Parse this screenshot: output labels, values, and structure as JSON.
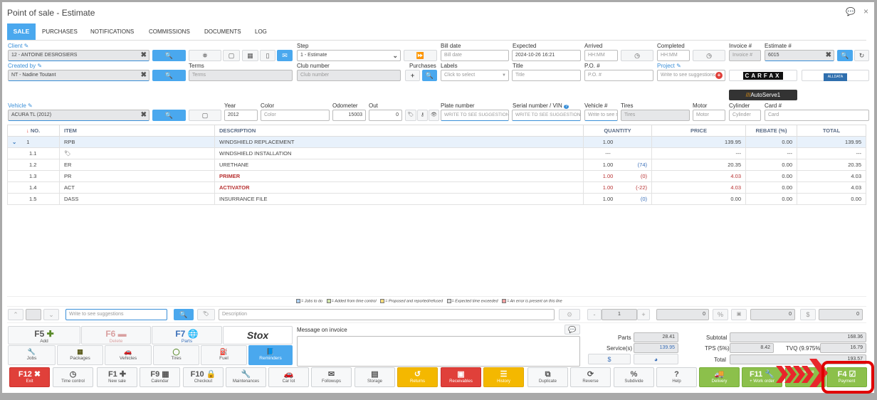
{
  "title": "Point of sale - Estimate",
  "tabs": [
    "SALE",
    "PURCHASES",
    "NOTIFICATIONS",
    "COMMISSIONS",
    "DOCUMENTS",
    "LOG"
  ],
  "colors": {
    "accent": "#4aa8ee",
    "danger": "#e0403a",
    "warning": "#f4b800",
    "success": "#8cc04b",
    "highlight": "#e00000"
  },
  "form": {
    "client_label": "Client",
    "client_value": "12 - ANTOINE DESROSIERS",
    "step_label": "Step",
    "step_value": "1 - Estimate",
    "bill_date_label": "Bill date",
    "bill_date_ph": "Bill date",
    "expected_label": "Expected",
    "expected_value": "2024-10-26 16:21",
    "arrived_label": "Arrived",
    "arrived_ph": "HH:MM",
    "completed_label": "Completed",
    "completed_ph": "HH:MM",
    "invoice_label": "Invoice #",
    "invoice_ph": "Invoice #",
    "estimate_label": "Estimate #",
    "estimate_value": "6015",
    "created_by_label": "Created by",
    "created_by_value": "NT - Nadine Toutant",
    "terms_label": "Terms",
    "terms_ph": "Terms",
    "club_label": "Club number",
    "club_ph": "Club number",
    "purchases_label": "Purchases",
    "labels_label": "Labels",
    "labels_ph": "Click to select",
    "title_label": "Title",
    "title_ph": "Title",
    "po_label": "P.O. #",
    "po_ph": "P.O. #",
    "project_label": "Project",
    "project_ph": "Write to see suggestions",
    "carfax": "CARFAX",
    "alldata": "ALLDATA",
    "autoserve": "AutoServe1",
    "vehicle_label": "Vehicle",
    "vehicle_value": "ACURA TL (2012)",
    "year_label": "Year",
    "year_value": "2012",
    "color_label": "Color",
    "color_ph": "Color",
    "odometer_label": "Odometer",
    "odometer_value": "15003",
    "out_label": "Out",
    "out_value": "0",
    "plate_label": "Plate number",
    "plate_ph": "WRITE TO SEE SUGGESTIONS",
    "vin_label": "Serial number / VIN",
    "vin_ph": "WRITE TO SEE SUGGESTIONS",
    "vehnum_label": "Vehicle #",
    "vehnum_ph": "Write to see suggestions",
    "tires_label": "Tires",
    "tires_ph": "Tires",
    "motor_label": "Motor",
    "motor_ph": "Motor",
    "cylinder_label": "Cylinder",
    "cylinder_ph": "Cylinder",
    "card_label": "Card #",
    "card_ph": "Card"
  },
  "table": {
    "headers": [
      "NO.",
      "ITEM",
      "DESCRIPTION",
      "QUANTITY",
      "PRICE",
      "REBATE (%)",
      "TOTAL"
    ],
    "rows": [
      {
        "no": "1",
        "item": "RPB",
        "desc": "WINDSHIELD REPLACEMENT",
        "qty": "1.00",
        "stock": "",
        "price": "139.95",
        "rebate": "0.00",
        "total": "139.95",
        "status": "normal"
      },
      {
        "no": "1.1",
        "item": "",
        "desc": "WINDSHIELD INSTALLATION",
        "qty": "---",
        "stock": "",
        "price": "---",
        "rebate": "---",
        "total": "---",
        "status": "normal"
      },
      {
        "no": "1.2",
        "item": "ER",
        "desc": "URETHANE",
        "qty": "1.00",
        "stock": "(74)",
        "price": "20.35",
        "rebate": "0.00",
        "total": "20.35",
        "status": "normal"
      },
      {
        "no": "1.3",
        "item": "PR",
        "desc": "PRIMER",
        "qty": "1.00",
        "stock": "(0)",
        "price": "4.03",
        "rebate": "0.00",
        "total": "4.03",
        "status": "error"
      },
      {
        "no": "1.4",
        "item": "ACT",
        "desc": "ACTIVATOR",
        "qty": "1.00",
        "stock": "(-22)",
        "price": "4.03",
        "rebate": "0.00",
        "total": "4.03",
        "status": "error"
      },
      {
        "no": "1.5",
        "item": "DASS",
        "desc": "INSURRANCE FILE",
        "qty": "1.00",
        "stock": "(0)",
        "price": "0.00",
        "rebate": "0.00",
        "total": "0.00",
        "status": "normal"
      }
    ]
  },
  "legend": [
    "= Jobs to do",
    "= Added from time control",
    "= Proposed and reported/refused",
    "= Expected time exceeded",
    "= An error is present on this line"
  ],
  "line_editor": {
    "suggest_ph": "Write to see suggestions",
    "desc_ph": "Description",
    "qty": "1",
    "minus": "-",
    "plus": "+",
    "v1": "0",
    "pct": "%",
    "v2": "0",
    "dollar": "$",
    "v3": "0"
  },
  "actions": {
    "add": {
      "key": "F5",
      "label": "Add"
    },
    "delete": {
      "key": "F6",
      "label": "Delete"
    },
    "parts": {
      "key": "F7",
      "label": "Parts"
    },
    "stox": "Stox",
    "jobs": "Jobs",
    "packages": "Packages",
    "vehicles": "Vehicles",
    "tires": "Tires",
    "fuel": "Fuel",
    "reminders": "Reminders"
  },
  "message_label": "Message on invoice",
  "totals": {
    "parts_label": "Parts",
    "parts": "28.41",
    "service_label": "Service(s)",
    "service": "139.95",
    "dollar": "$",
    "subtotal_label": "Subtotal",
    "subtotal": "168.36",
    "tps_label": "TPS (5%)",
    "tps": "8.42",
    "tvq_label": "TVQ (9.975%)",
    "tvq": "16.79",
    "total_label": "Total",
    "total": "193.57"
  },
  "bottom": [
    {
      "key": "F12",
      "label": "Exit",
      "style": "red"
    },
    {
      "key": "",
      "label": "Time control",
      "style": ""
    },
    {
      "key": "F1",
      "label": "New sale",
      "style": ""
    },
    {
      "key": "F9",
      "label": "Calendar",
      "style": ""
    },
    {
      "key": "F10",
      "label": "Checkout",
      "style": ""
    },
    {
      "key": "",
      "label": "Maintenances",
      "style": ""
    },
    {
      "key": "",
      "label": "Car lot",
      "style": ""
    },
    {
      "key": "",
      "label": "Followups",
      "style": ""
    },
    {
      "key": "",
      "label": "Storage",
      "style": ""
    },
    {
      "key": "",
      "label": "Returns",
      "style": "yel"
    },
    {
      "key": "",
      "label": "Receivables",
      "style": "red"
    },
    {
      "key": "",
      "label": "History",
      "style": "yel"
    },
    {
      "key": "",
      "label": "Duplicate",
      "style": ""
    },
    {
      "key": "",
      "label": "Reverse",
      "style": ""
    },
    {
      "key": "",
      "label": "Subdivide",
      "style": ""
    },
    {
      "key": "",
      "label": "Help",
      "style": ""
    },
    {
      "key": "",
      "label": "Delivery",
      "style": "grn"
    },
    {
      "key": "F11",
      "label": "+ Work order",
      "style": "grn"
    },
    {
      "key": "",
      "label": "+ Invoice",
      "style": "grn"
    },
    {
      "key": "F4",
      "label": "Payment",
      "style": "grn"
    }
  ]
}
